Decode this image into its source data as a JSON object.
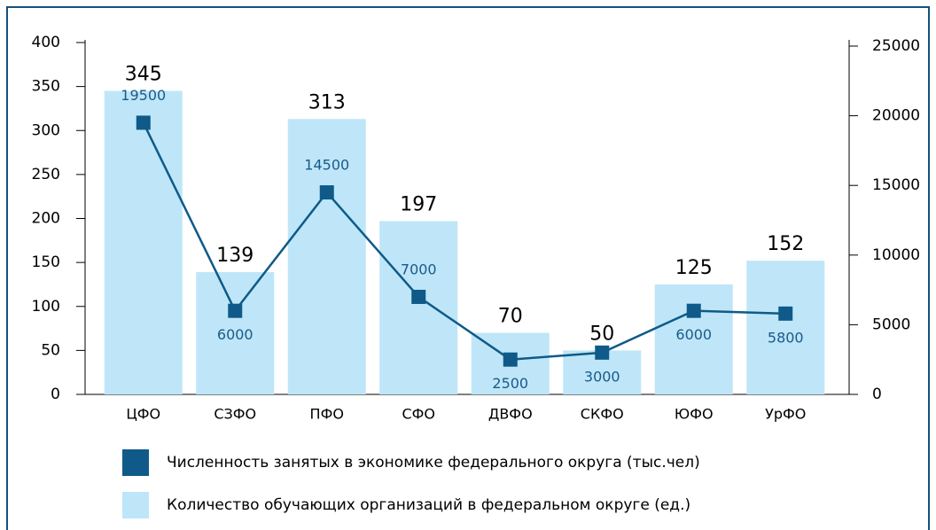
{
  "chart_data": {
    "type": "combo",
    "categories": [
      "ЦФО",
      "СЗФО",
      "ПФО",
      "СФО",
      "ДВФО",
      "СКФО",
      "ЮФО",
      "УрФО"
    ],
    "series": [
      {
        "name": "Численность занятых в экономике федерального округа (тыс.чел)",
        "type": "line",
        "axis": "y2",
        "color": "#0f5a88",
        "values": [
          19500,
          6000,
          14500,
          7000,
          2500,
          3000,
          6000,
          5800
        ]
      },
      {
        "name": "Количество обучающих организаций в федеральном округе (ед.)",
        "type": "bar",
        "color": "#bee6f8",
        "values": [
          345,
          139,
          313,
          197,
          70,
          50,
          125,
          152
        ]
      }
    ],
    "ylim": [
      0,
      400
    ],
    "yticks": [
      0,
      50,
      100,
      150,
      200,
      250,
      300,
      350,
      400
    ],
    "y2lim": [
      0,
      25000
    ],
    "y2ticks": [
      0,
      5000,
      10000,
      15000,
      20000,
      25000
    ],
    "grid": false
  }
}
